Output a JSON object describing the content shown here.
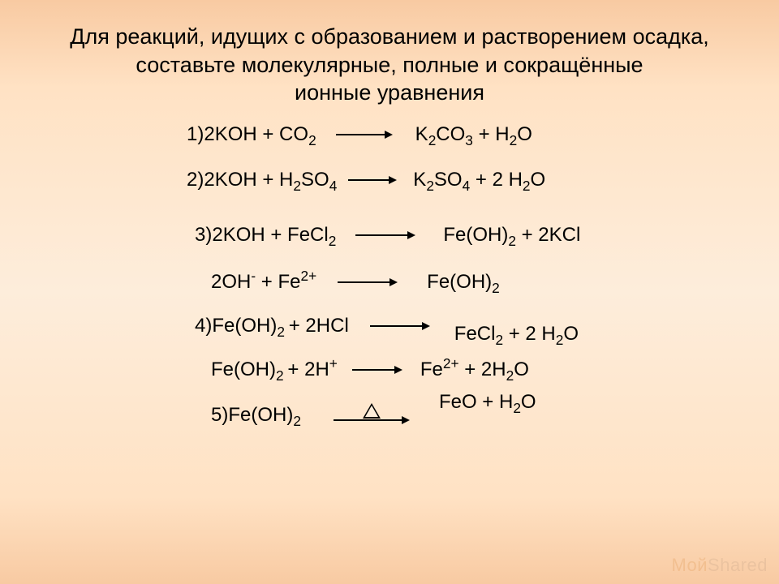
{
  "title": {
    "line1": "Для реакций, идущих с образованием и растворением осадка,",
    "line2": "составьте молекулярные, полные и сокращённые",
    "line3": "ионные уравнения",
    "fontsize": 27,
    "color": "#000000"
  },
  "background": {
    "gradient_stops": [
      "#f8caa2",
      "#ffe2c4",
      "#fdeddb",
      "#ffe2c4",
      "#f8caa2"
    ]
  },
  "equations": {
    "fontsize": 24,
    "text_color": "#000000",
    "arrow_color": "#000000",
    "rows": [
      {
        "id": "row1",
        "number": "1)",
        "left": [
          {
            "t": "2KOH + CO"
          },
          {
            "sub": "2"
          }
        ],
        "arrow_len": 60,
        "gap_before_arrow": 14,
        "gap_after_arrow": 18,
        "right": [
          {
            "t": "K"
          },
          {
            "sub": "2"
          },
          {
            "t": "CO"
          },
          {
            "sub": "3"
          },
          {
            "t": " + H"
          },
          {
            "sub": "2"
          },
          {
            "t": "O"
          }
        ]
      },
      {
        "id": "row2",
        "number": "2)",
        "left": [
          {
            "t": "2KOH + H"
          },
          {
            "sub": "2"
          },
          {
            "t": "SO"
          },
          {
            "sub": "4"
          }
        ],
        "arrow_len": 50,
        "gap_before_arrow": 4,
        "gap_after_arrow": 10,
        "right": [
          {
            "t": "K"
          },
          {
            "sub": "2"
          },
          {
            "t": "SO"
          },
          {
            "sub": "4"
          },
          {
            "t": " + 2 H"
          },
          {
            "sub": "2"
          },
          {
            "t": "O"
          }
        ]
      },
      {
        "id": "row3",
        "number": "3)",
        "left": [
          {
            "t": "2KOH + FeCl"
          },
          {
            "sub": "2"
          }
        ],
        "arrow_len": 64,
        "gap_before_arrow": 14,
        "gap_after_arrow": 24,
        "right": [
          {
            "t": "Fe(OH)"
          },
          {
            "sub": "2"
          },
          {
            "t": " + 2KCl"
          }
        ]
      },
      {
        "id": "row3b",
        "left": [
          {
            "t": "2OH"
          },
          {
            "sup": "-"
          },
          {
            "t": " + Fe"
          },
          {
            "sup": "2+"
          }
        ],
        "arrow_len": 64,
        "gap_before_arrow": 16,
        "gap_after_arrow": 26,
        "right": [
          {
            "t": "Fe(OH)"
          },
          {
            "sub": "2"
          }
        ]
      },
      {
        "id": "row4",
        "number": "4)",
        "left": [
          {
            "t": "Fe(OH)"
          },
          {
            "sub": "2 "
          },
          {
            "t": "+ 2HCl"
          }
        ],
        "arrow_len": 64,
        "gap_before_arrow": 16,
        "gap_after_arrow": 20,
        "right": [
          {
            "t": "FeCl"
          },
          {
            "sub": "2"
          },
          {
            "t": " + 2 H"
          },
          {
            "sub": "2"
          },
          {
            "t": "O"
          }
        ],
        "right_voffset": 10
      },
      {
        "id": "row4b",
        "left": [
          {
            "t": "Fe(OH)"
          },
          {
            "sub": "2 "
          },
          {
            "t": "+ 2H"
          },
          {
            "sup": "+"
          }
        ],
        "arrow_len": 52,
        "gap_before_arrow": 8,
        "gap_after_arrow": 12,
        "right": [
          {
            "t": "Fe"
          },
          {
            "sup": "2+"
          },
          {
            "t": " + 2H"
          },
          {
            "sub": "2"
          },
          {
            "t": "O"
          }
        ]
      },
      {
        "id": "row5",
        "number": "5)",
        "left": [
          {
            "t": "Fe(OH)"
          },
          {
            "sub": "2"
          }
        ],
        "arrow_len": 84,
        "gap_before_arrow": 28,
        "gap_after_arrow": 24,
        "heat": true,
        "right": [
          {
            "t": "FeO + H"
          },
          {
            "sub": "2"
          },
          {
            "t": "O"
          }
        ],
        "right_voffset": -16
      }
    ]
  },
  "watermark": {
    "part1": "Мой",
    "part2": "Shared",
    "color_part1": "rgba(204,102,0,0.15)",
    "color_rest": "rgba(0,0,0,0.06)",
    "fontsize": 22
  }
}
